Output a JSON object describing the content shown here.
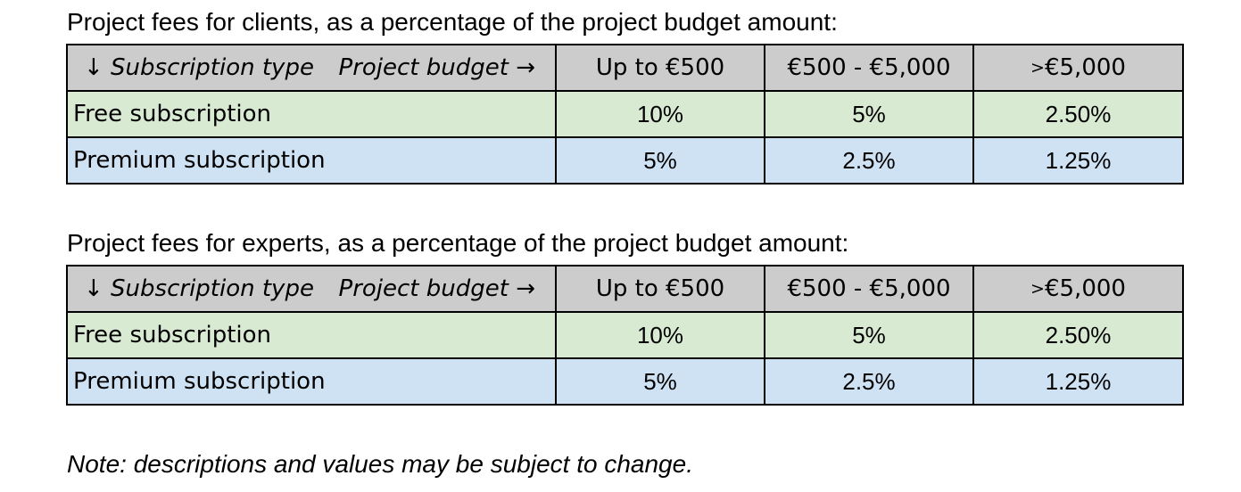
{
  "client_section": {
    "caption": "Project fees for clients, as a percentage of the project budget amount:",
    "header": {
      "row_axis": "↓ Subscription type",
      "col_axis": "Project budget →",
      "bands": [
        "Up to €500",
        "€500 - €5,000",
        "€5,000"
      ],
      "last_band_prefix": ">"
    },
    "rows": [
      {
        "type": "Free subscription",
        "fees": [
          "10%",
          "5%",
          "2.50%"
        ]
      },
      {
        "type": "Premium subscription",
        "fees": [
          "5%",
          "2.5%",
          "1.25%"
        ]
      }
    ]
  },
  "expert_section": {
    "caption": "Project fees for experts, as a percentage of the project budget amount:",
    "header": {
      "row_axis": "↓ Subscription type",
      "col_axis": "Project budget →",
      "bands": [
        "Up to €500",
        "€500 - €5,000",
        "€5,000"
      ],
      "last_band_prefix": ">"
    },
    "rows": [
      {
        "type": "Free subscription",
        "fees": [
          "10%",
          "5%",
          "2.50%"
        ]
      },
      {
        "type": "Premium subscription",
        "fees": [
          "5%",
          "2.5%",
          "1.25%"
        ]
      }
    ]
  },
  "note": "Note: descriptions and values may be subject to change.",
  "colors": {
    "header_bg": "#cccccc",
    "free_bg": "#d9ead3",
    "premium_bg": "#cfe2f3"
  }
}
